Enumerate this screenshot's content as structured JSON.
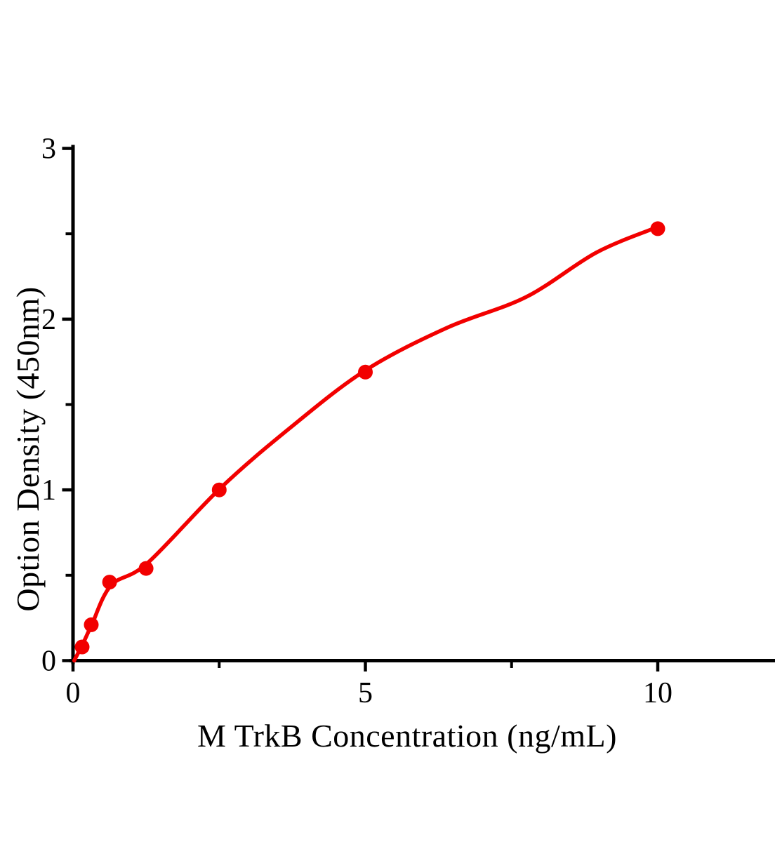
{
  "chart_data": {
    "type": "scatter",
    "title": "",
    "xlabel": "M TrkB Concentration (ng/mL)",
    "ylabel": "Option Density (450nm)",
    "xlim": [
      0,
      12
    ],
    "ylim": [
      0,
      3
    ],
    "x_major_ticks": [
      0,
      5,
      10
    ],
    "x_minor_ticks": [
      2.5,
      7.5
    ],
    "y_major_ticks": [
      0,
      1,
      2,
      3
    ],
    "y_minor_ticks": [
      0.5,
      1.5,
      2.5
    ],
    "grid": false,
    "legend": false,
    "background_color": "#ffffff",
    "axis_color": "#000000",
    "marker_color": "#f20000",
    "line_color": "#f20000",
    "points": [
      {
        "x": 0.156,
        "y": 0.08
      },
      {
        "x": 0.3125,
        "y": 0.21
      },
      {
        "x": 0.625,
        "y": 0.46
      },
      {
        "x": 1.25,
        "y": 0.54
      },
      {
        "x": 2.5,
        "y": 1.0
      },
      {
        "x": 5,
        "y": 1.69
      },
      {
        "x": 10,
        "y": 2.53
      }
    ],
    "fit_curve": [
      {
        "x": 0.02,
        "y": 0.0
      },
      {
        "x": 0.17,
        "y": 0.1
      },
      {
        "x": 0.32,
        "y": 0.21
      },
      {
        "x": 0.65,
        "y": 0.44
      },
      {
        "x": 1.27,
        "y": 0.57
      },
      {
        "x": 2.52,
        "y": 1.01
      },
      {
        "x": 3.7,
        "y": 1.36
      },
      {
        "x": 5.0,
        "y": 1.7
      },
      {
        "x": 6.4,
        "y": 1.95
      },
      {
        "x": 7.75,
        "y": 2.13
      },
      {
        "x": 8.95,
        "y": 2.39
      },
      {
        "x": 10.0,
        "y": 2.54
      }
    ]
  }
}
